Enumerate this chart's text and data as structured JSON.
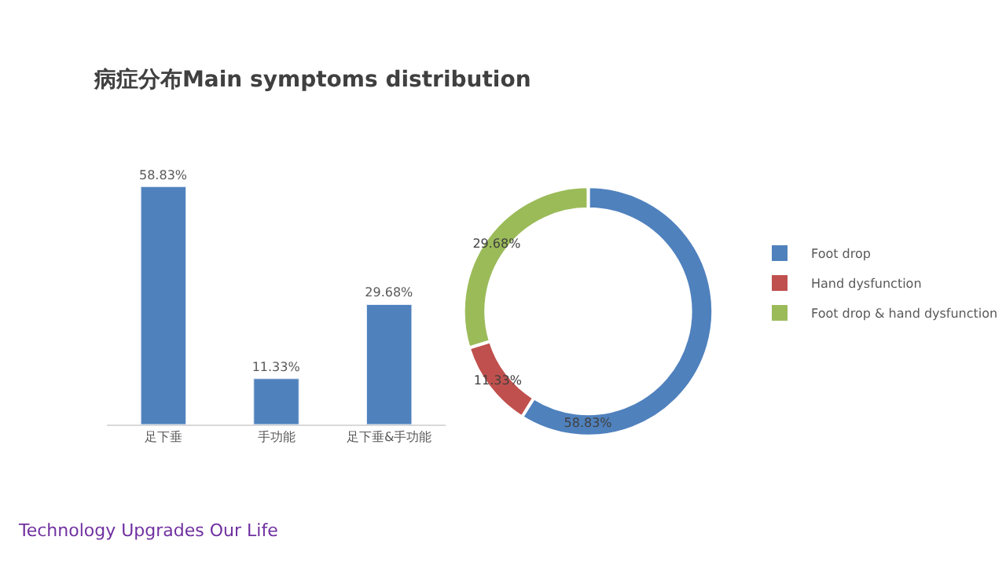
{
  "chart_data": [
    {
      "type": "bar",
      "title": "病症分布Main symptoms distribution",
      "categories": [
        "足下垂",
        "手功能",
        "足下垂&手功能"
      ],
      "values": [
        58.83,
        11.33,
        29.68
      ],
      "value_labels": [
        "58.83%",
        "11.33%",
        "29.68%"
      ],
      "color": "#4f81bd",
      "annotations": [
        "Technology Upgrades Our Life"
      ]
    },
    {
      "type": "donut",
      "categories": [
        "Foot drop",
        "Hand dysfunction",
        "Foot drop & hand dysfunction"
      ],
      "values": [
        58.83,
        11.33,
        29.68
      ],
      "colors": [
        "#4f81bd",
        "#c0504d",
        "#9bbb59"
      ],
      "value_labels": [
        "58.83%",
        "11.33%",
        "29.68%"
      ],
      "legend": "right"
    }
  ]
}
